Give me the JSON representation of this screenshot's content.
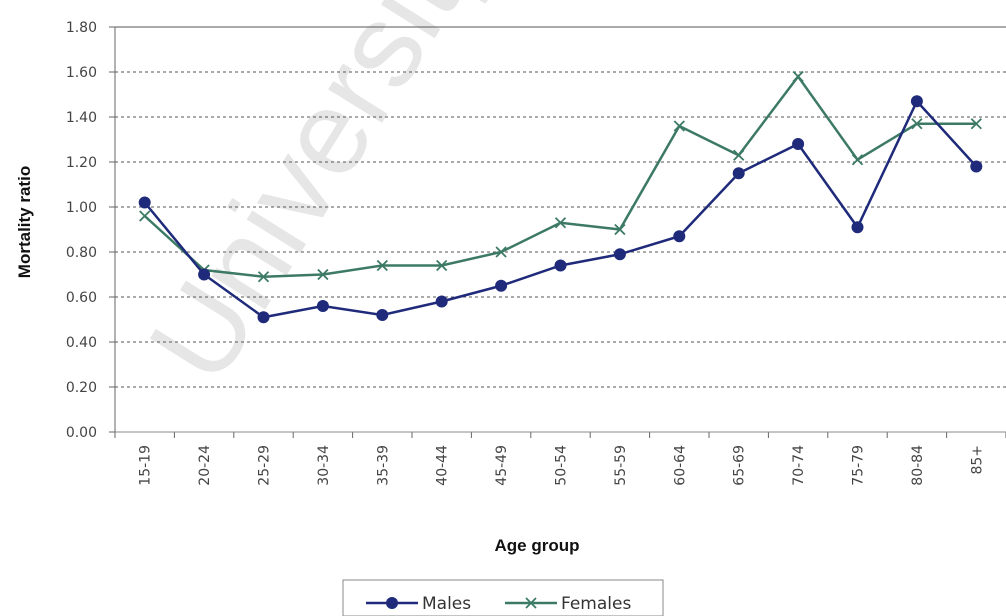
{
  "watermark": "University of",
  "chart_data": {
    "type": "line",
    "ylabel": "Mortality ratio",
    "xlabel": "Age group",
    "categories": [
      "15-19",
      "20-24",
      "25-29",
      "30-34",
      "35-39",
      "40-44",
      "45-49",
      "50-54",
      "55-59",
      "60-64",
      "65-69",
      "70-74",
      "75-79",
      "80-84",
      "85+"
    ],
    "ylim": [
      0,
      1.8
    ],
    "yticks": [
      "0.00",
      "0.20",
      "0.40",
      "0.60",
      "0.80",
      "1.00",
      "1.20",
      "1.40",
      "1.60",
      "1.80"
    ],
    "grid": "horizontal dashed",
    "legend_position": "bottom",
    "series": [
      {
        "name": "Males",
        "color": "#1f2a7a",
        "marker": "circle",
        "values": [
          1.02,
          0.7,
          0.51,
          0.56,
          0.52,
          0.58,
          0.65,
          0.74,
          0.79,
          0.87,
          1.15,
          1.28,
          0.91,
          1.47,
          1.18
        ]
      },
      {
        "name": "Females",
        "color": "#3d7a66",
        "marker": "x",
        "values": [
          0.96,
          0.72,
          0.69,
          0.7,
          0.74,
          0.74,
          0.8,
          0.93,
          0.9,
          1.36,
          1.23,
          1.58,
          1.21,
          1.37,
          1.37
        ]
      }
    ]
  }
}
